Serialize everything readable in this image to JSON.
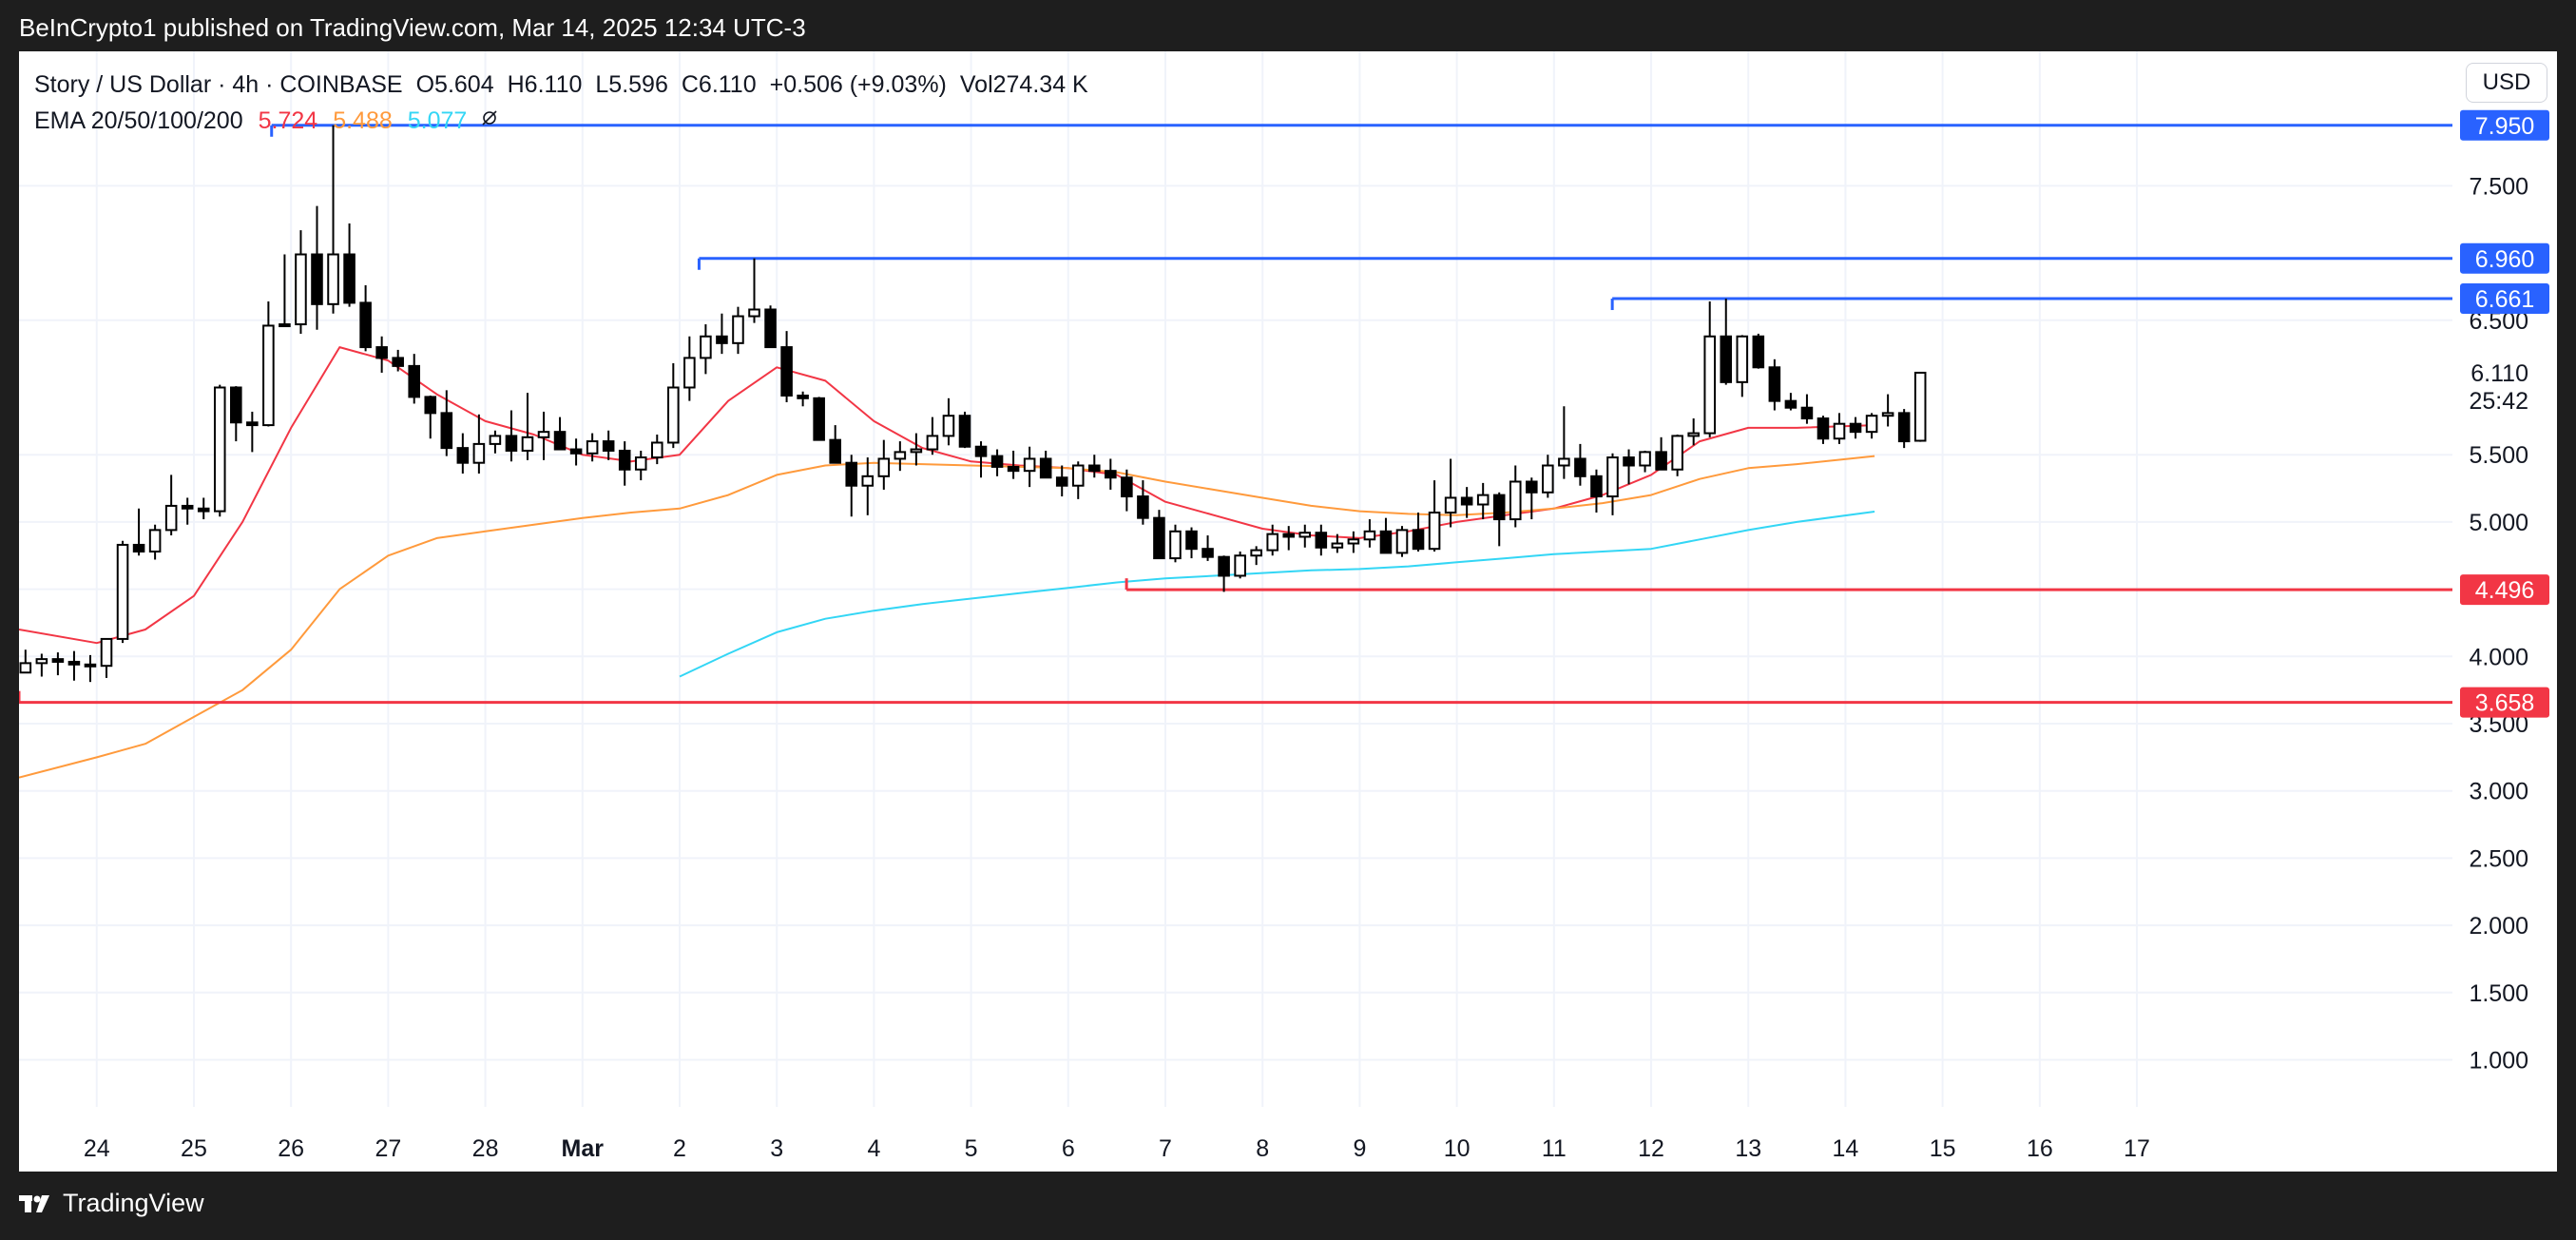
{
  "header": {
    "publisher_line": "BeInCrypto1 published on TradingView.com, Mar 14, 2025 12:34 UTC-3"
  },
  "footer": {
    "brand": "TradingView"
  },
  "currency_button": "USD",
  "legend": {
    "symbol_line": {
      "symbol": "Story / US Dollar · 4h · COINBASE",
      "open": "O5.604",
      "high": "H6.110",
      "low": "L5.596",
      "close": "C6.110",
      "change": "+0.506 (+9.03%)",
      "volume": "Vol274.34 K"
    },
    "ema_line": {
      "label": "EMA 20/50/100/200",
      "ema20": "5.724",
      "ema50": "5.488",
      "ema100": "5.077",
      "icon": "eye-off-icon"
    }
  },
  "colors": {
    "up": "#ffffff",
    "down": "#000000",
    "wick": "#000000",
    "ema20": "#f23645",
    "ema50": "#ff9a3c",
    "ema100": "#33d6f5",
    "resistance": "#2962ff",
    "support": "#f23645",
    "grid": "#f0f3fa"
  },
  "chart_data": {
    "type": "candlestick",
    "title": "Story / US Dollar · 4h · COINBASE",
    "interval": "4h",
    "y_axis": {
      "min": 0.65,
      "max": 8.5,
      "ticks": [
        "1.000",
        "1.500",
        "2.000",
        "2.500",
        "3.000",
        "3.500",
        "4.000",
        "4.500",
        "5.000",
        "5.500",
        "6.500",
        "7.500"
      ],
      "side": "right"
    },
    "x_axis": {
      "start_day": 23.2,
      "end_day": 48.15,
      "tick_labels": [
        {
          "day": 24,
          "label": "24"
        },
        {
          "day": 25,
          "label": "25"
        },
        {
          "day": 26,
          "label": "26"
        },
        {
          "day": 27,
          "label": "27"
        },
        {
          "day": 28,
          "label": "28"
        },
        {
          "day": 29,
          "label": "Mar",
          "bold": true
        },
        {
          "day": 30,
          "label": "2"
        },
        {
          "day": 31,
          "label": "3"
        },
        {
          "day": 32,
          "label": "4"
        },
        {
          "day": 33,
          "label": "5"
        },
        {
          "day": 34,
          "label": "6"
        },
        {
          "day": 35,
          "label": "7"
        },
        {
          "day": 36,
          "label": "8"
        },
        {
          "day": 37,
          "label": "9"
        },
        {
          "day": 38,
          "label": "10"
        },
        {
          "day": 39,
          "label": "11"
        },
        {
          "day": 40,
          "label": "12"
        },
        {
          "day": 41,
          "label": "13"
        },
        {
          "day": 42,
          "label": "14"
        },
        {
          "day": 43,
          "label": "15"
        },
        {
          "day": 44,
          "label": "16"
        },
        {
          "day": 45,
          "label": "17"
        }
      ]
    },
    "grid": true,
    "candles_start_day": 23.1,
    "candle_step_days": 0.1667,
    "candles": [
      [
        4.41,
        4.42,
        3.87,
        3.88
      ],
      [
        3.88,
        4.05,
        3.88,
        3.95
      ],
      [
        3.95,
        4.02,
        3.85,
        3.98
      ],
      [
        3.98,
        4.03,
        3.86,
        3.96
      ],
      [
        3.96,
        4.04,
        3.82,
        3.94
      ],
      [
        3.94,
        4.01,
        3.81,
        3.93
      ],
      [
        3.93,
        4.1,
        3.84,
        4.13
      ],
      [
        4.13,
        4.86,
        4.1,
        4.83
      ],
      [
        4.83,
        5.1,
        4.75,
        4.78
      ],
      [
        4.78,
        4.98,
        4.72,
        4.94
      ],
      [
        4.94,
        5.35,
        4.9,
        5.12
      ],
      [
        5.12,
        5.18,
        4.98,
        5.1
      ],
      [
        5.1,
        5.18,
        5.02,
        5.08
      ],
      [
        5.08,
        6.02,
        5.04,
        6.0
      ],
      [
        6.0,
        6.01,
        5.6,
        5.74
      ],
      [
        5.74,
        5.82,
        5.52,
        5.72
      ],
      [
        5.72,
        6.64,
        5.71,
        6.46
      ],
      [
        6.46,
        6.99,
        6.45,
        6.47
      ],
      [
        6.47,
        7.17,
        6.4,
        6.99
      ],
      [
        6.99,
        7.35,
        6.43,
        6.62
      ],
      [
        6.62,
        7.95,
        6.55,
        6.99
      ],
      [
        6.99,
        7.22,
        6.6,
        6.63
      ],
      [
        6.63,
        6.76,
        6.27,
        6.3
      ],
      [
        6.3,
        6.38,
        6.11,
        6.22
      ],
      [
        6.22,
        6.28,
        6.12,
        6.16
      ],
      [
        6.16,
        6.25,
        5.88,
        5.93
      ],
      [
        5.93,
        5.94,
        5.62,
        5.81
      ],
      [
        5.81,
        5.98,
        5.49,
        5.55
      ],
      [
        5.55,
        5.66,
        5.36,
        5.44
      ],
      [
        5.44,
        5.8,
        5.36,
        5.58
      ],
      [
        5.58,
        5.68,
        5.51,
        5.64
      ],
      [
        5.64,
        5.83,
        5.45,
        5.53
      ],
      [
        5.53,
        5.96,
        5.46,
        5.63
      ],
      [
        5.63,
        5.82,
        5.46,
        5.67
      ],
      [
        5.67,
        5.78,
        5.55,
        5.54
      ],
      [
        5.54,
        5.62,
        5.42,
        5.51
      ],
      [
        5.51,
        5.66,
        5.45,
        5.6
      ],
      [
        5.6,
        5.68,
        5.46,
        5.53
      ],
      [
        5.53,
        5.6,
        5.27,
        5.39
      ],
      [
        5.39,
        5.53,
        5.31,
        5.48
      ],
      [
        5.48,
        5.65,
        5.43,
        5.59
      ],
      [
        5.59,
        6.18,
        5.55,
        6.0
      ],
      [
        6.0,
        6.38,
        5.9,
        6.22
      ],
      [
        6.22,
        6.47,
        6.1,
        6.38
      ],
      [
        6.38,
        6.55,
        6.25,
        6.33
      ],
      [
        6.33,
        6.6,
        6.25,
        6.53
      ],
      [
        6.53,
        6.96,
        6.48,
        6.58
      ],
      [
        6.58,
        6.61,
        6.3,
        6.3
      ],
      [
        6.3,
        6.42,
        5.89,
        5.94
      ],
      [
        5.94,
        5.97,
        5.86,
        5.92
      ],
      [
        5.92,
        5.93,
        5.61,
        5.61
      ],
      [
        5.61,
        5.72,
        5.48,
        5.44
      ],
      [
        5.44,
        5.5,
        5.04,
        5.27
      ],
      [
        5.27,
        5.48,
        5.05,
        5.34
      ],
      [
        5.34,
        5.61,
        5.24,
        5.47
      ],
      [
        5.47,
        5.6,
        5.38,
        5.52
      ],
      [
        5.52,
        5.66,
        5.42,
        5.54
      ],
      [
        5.54,
        5.78,
        5.5,
        5.64
      ],
      [
        5.64,
        5.92,
        5.57,
        5.79
      ],
      [
        5.79,
        5.82,
        5.55,
        5.56
      ],
      [
        5.56,
        5.6,
        5.33,
        5.49
      ],
      [
        5.49,
        5.54,
        5.34,
        5.41
      ],
      [
        5.41,
        5.53,
        5.32,
        5.38
      ],
      [
        5.38,
        5.56,
        5.26,
        5.47
      ],
      [
        5.47,
        5.53,
        5.38,
        5.33
      ],
      [
        5.33,
        5.42,
        5.19,
        5.27
      ],
      [
        5.27,
        5.45,
        5.17,
        5.42
      ],
      [
        5.42,
        5.5,
        5.33,
        5.38
      ],
      [
        5.38,
        5.47,
        5.24,
        5.33
      ],
      [
        5.33,
        5.39,
        5.08,
        5.19
      ],
      [
        5.19,
        5.31,
        4.98,
        5.03
      ],
      [
        5.03,
        5.09,
        4.73,
        4.73
      ],
      [
        4.73,
        4.98,
        4.7,
        4.93
      ],
      [
        4.93,
        4.96,
        4.73,
        4.8
      ],
      [
        4.8,
        4.9,
        4.71,
        4.74
      ],
      [
        4.74,
        4.75,
        4.48,
        4.6
      ],
      [
        4.6,
        4.78,
        4.58,
        4.75
      ],
      [
        4.75,
        4.82,
        4.68,
        4.79
      ],
      [
        4.79,
        4.98,
        4.75,
        4.91
      ],
      [
        4.91,
        4.97,
        4.79,
        4.89
      ],
      [
        4.89,
        4.98,
        4.81,
        4.92
      ],
      [
        4.92,
        4.98,
        4.75,
        4.81
      ],
      [
        4.81,
        4.91,
        4.77,
        4.84
      ],
      [
        4.84,
        4.93,
        4.77,
        4.87
      ],
      [
        4.87,
        5.02,
        4.81,
        4.93
      ],
      [
        4.93,
        5.03,
        4.78,
        4.77
      ],
      [
        4.77,
        4.97,
        4.74,
        4.94
      ],
      [
        4.94,
        5.07,
        4.78,
        4.8
      ],
      [
        4.8,
        5.31,
        4.78,
        5.07
      ],
      [
        5.07,
        5.47,
        4.96,
        5.18
      ],
      [
        5.18,
        5.26,
        5.03,
        5.13
      ],
      [
        5.13,
        5.29,
        5.02,
        5.2
      ],
      [
        5.2,
        5.22,
        4.82,
        5.02
      ],
      [
        5.02,
        5.42,
        4.96,
        5.3
      ],
      [
        5.3,
        5.33,
        5.02,
        5.22
      ],
      [
        5.22,
        5.5,
        5.18,
        5.42
      ],
      [
        5.42,
        5.86,
        5.32,
        5.47
      ],
      [
        5.47,
        5.58,
        5.27,
        5.34
      ],
      [
        5.34,
        5.39,
        5.07,
        5.19
      ],
      [
        5.19,
        5.51,
        5.05,
        5.48
      ],
      [
        5.48,
        5.54,
        5.28,
        5.42
      ],
      [
        5.42,
        5.53,
        5.37,
        5.52
      ],
      [
        5.52,
        5.63,
        5.44,
        5.39
      ],
      [
        5.39,
        5.65,
        5.34,
        5.64
      ],
      [
        5.64,
        5.77,
        5.57,
        5.66
      ],
      [
        5.66,
        6.64,
        5.63,
        6.38
      ],
      [
        6.38,
        6.66,
        6.02,
        6.04
      ],
      [
        6.04,
        6.39,
        5.93,
        6.38
      ],
      [
        6.38,
        6.4,
        6.14,
        6.15
      ],
      [
        6.15,
        6.21,
        5.83,
        5.9
      ],
      [
        5.9,
        5.96,
        5.83,
        5.85
      ],
      [
        5.85,
        5.95,
        5.73,
        5.77
      ],
      [
        5.77,
        5.79,
        5.58,
        5.62
      ],
      [
        5.62,
        5.81,
        5.58,
        5.73
      ],
      [
        5.73,
        5.78,
        5.62,
        5.67
      ],
      [
        5.67,
        5.81,
        5.62,
        5.79
      ],
      [
        5.79,
        5.95,
        5.71,
        5.81
      ],
      [
        5.81,
        5.84,
        5.55,
        5.6
      ],
      [
        5.604,
        6.11,
        5.596,
        6.11
      ]
    ],
    "ema_series": [
      {
        "name": "EMA 20",
        "color": "#f23645",
        "points": [
          [
            23.2,
            4.2
          ],
          [
            24.0,
            4.1
          ],
          [
            24.5,
            4.2
          ],
          [
            25.0,
            4.45
          ],
          [
            25.5,
            5.0
          ],
          [
            26.0,
            5.7
          ],
          [
            26.5,
            6.3
          ],
          [
            27.0,
            6.2
          ],
          [
            27.5,
            5.95
          ],
          [
            28.0,
            5.75
          ],
          [
            28.5,
            5.65
          ],
          [
            29.0,
            5.5
          ],
          [
            29.5,
            5.45
          ],
          [
            30.0,
            5.5
          ],
          [
            30.5,
            5.9
          ],
          [
            31.0,
            6.15
          ],
          [
            31.5,
            6.05
          ],
          [
            32.0,
            5.75
          ],
          [
            32.5,
            5.55
          ],
          [
            33.0,
            5.45
          ],
          [
            33.5,
            5.42
          ],
          [
            34.0,
            5.4
          ],
          [
            34.5,
            5.35
          ],
          [
            35.0,
            5.15
          ],
          [
            35.5,
            5.05
          ],
          [
            36.0,
            4.95
          ],
          [
            36.5,
            4.9
          ],
          [
            37.0,
            4.88
          ],
          [
            37.5,
            4.93
          ],
          [
            38.0,
            5.0
          ],
          [
            38.5,
            5.05
          ],
          [
            39.0,
            5.1
          ],
          [
            39.5,
            5.2
          ],
          [
            40.0,
            5.35
          ],
          [
            40.5,
            5.6
          ],
          [
            41.0,
            5.7
          ],
          [
            41.5,
            5.7
          ],
          [
            42.3,
            5.72
          ]
        ]
      },
      {
        "name": "EMA 50",
        "color": "#ff9a3c",
        "points": [
          [
            23.2,
            3.1
          ],
          [
            24.0,
            3.25
          ],
          [
            24.5,
            3.35
          ],
          [
            25.0,
            3.55
          ],
          [
            25.5,
            3.75
          ],
          [
            26.0,
            4.05
          ],
          [
            26.5,
            4.5
          ],
          [
            27.0,
            4.75
          ],
          [
            27.5,
            4.88
          ],
          [
            28.0,
            4.93
          ],
          [
            28.5,
            4.98
          ],
          [
            29.0,
            5.03
          ],
          [
            29.5,
            5.07
          ],
          [
            30.0,
            5.1
          ],
          [
            30.5,
            5.2
          ],
          [
            31.0,
            5.35
          ],
          [
            31.5,
            5.42
          ],
          [
            32.0,
            5.44
          ],
          [
            32.5,
            5.43
          ],
          [
            33.0,
            5.42
          ],
          [
            33.5,
            5.41
          ],
          [
            34.0,
            5.4
          ],
          [
            34.5,
            5.37
          ],
          [
            35.0,
            5.3
          ],
          [
            35.5,
            5.24
          ],
          [
            36.0,
            5.18
          ],
          [
            36.5,
            5.12
          ],
          [
            37.0,
            5.08
          ],
          [
            37.5,
            5.06
          ],
          [
            38.0,
            5.05
          ],
          [
            38.5,
            5.07
          ],
          [
            39.0,
            5.1
          ],
          [
            39.5,
            5.14
          ],
          [
            40.0,
            5.2
          ],
          [
            40.5,
            5.32
          ],
          [
            41.0,
            5.4
          ],
          [
            41.5,
            5.43
          ],
          [
            42.3,
            5.49
          ]
        ]
      },
      {
        "name": "EMA 100",
        "color": "#33d6f5",
        "points": [
          [
            30.0,
            3.85
          ],
          [
            30.5,
            4.02
          ],
          [
            31.0,
            4.18
          ],
          [
            31.5,
            4.28
          ],
          [
            32.0,
            4.34
          ],
          [
            32.5,
            4.39
          ],
          [
            33.0,
            4.43
          ],
          [
            33.5,
            4.47
          ],
          [
            34.0,
            4.51
          ],
          [
            34.5,
            4.55
          ],
          [
            35.0,
            4.58
          ],
          [
            35.5,
            4.6
          ],
          [
            36.0,
            4.62
          ],
          [
            36.5,
            4.64
          ],
          [
            37.0,
            4.65
          ],
          [
            37.5,
            4.67
          ],
          [
            38.0,
            4.7
          ],
          [
            38.5,
            4.73
          ],
          [
            39.0,
            4.76
          ],
          [
            39.5,
            4.78
          ],
          [
            40.0,
            4.8
          ],
          [
            40.5,
            4.87
          ],
          [
            41.0,
            4.94
          ],
          [
            41.5,
            5.0
          ],
          [
            42.3,
            5.077
          ]
        ]
      }
    ],
    "level_lines": [
      {
        "label": "7.950",
        "value": 7.95,
        "start_day": 25.8,
        "kind": "resistance",
        "color": "#2962ff"
      },
      {
        "label": "6.960",
        "value": 6.96,
        "start_day": 30.2,
        "kind": "resistance",
        "color": "#2962ff"
      },
      {
        "label": "6.661",
        "value": 6.661,
        "start_day": 39.6,
        "kind": "resistance",
        "color": "#2962ff"
      },
      {
        "label": "4.496",
        "value": 4.496,
        "start_day": 34.6,
        "kind": "support",
        "color": "#f23645"
      },
      {
        "label": "3.658",
        "value": 3.658,
        "start_day": 22.35,
        "kind": "support",
        "color": "#f23645"
      }
    ],
    "price_marker": {
      "price": "6.110",
      "countdown": "25:42"
    }
  }
}
